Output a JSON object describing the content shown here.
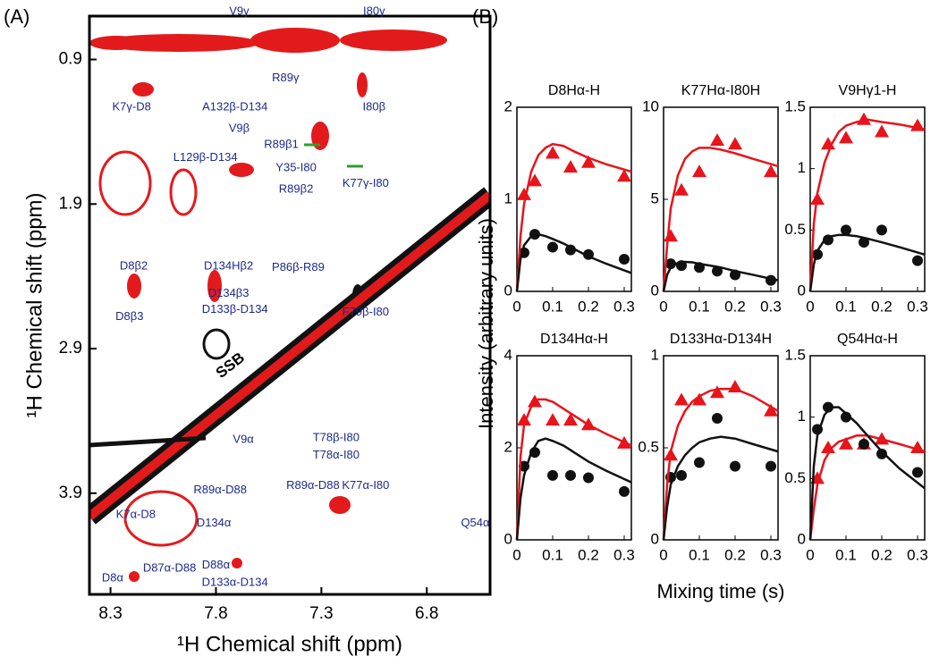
{
  "panel_labels": [
    "(A)",
    "(B)"
  ],
  "x_label": "Mixing time (s)",
  "y_label": "Intensity (arbitrary units)",
  "chart_data": [
    {
      "type": "spectrum",
      "x_label": "¹H Chemical shift (ppm)",
      "y_label": "¹H Chemical shift (ppm)",
      "xlim": [
        8.4,
        6.5
      ],
      "ylim": [
        0.6,
        4.6
      ],
      "y_reversed": true,
      "xticks": [
        8.3,
        7.8,
        7.3,
        6.8
      ],
      "yticks": [
        0.9,
        1.9,
        2.9,
        3.9
      ],
      "annotations": [
        {
          "text": "V9γ",
          "x": 7.69,
          "y": 0.57
        },
        {
          "text": "I80γ",
          "x": 7.05,
          "y": 0.57
        },
        {
          "text": "R89γ",
          "x": 7.47,
          "y": 1.03
        },
        {
          "text": "K7γ-D8",
          "x": 8.2,
          "y": 1.23
        },
        {
          "text": "A132β-D134",
          "x": 7.71,
          "y": 1.23
        },
        {
          "text": "I80β",
          "x": 7.05,
          "y": 1.23
        },
        {
          "text": "V9β",
          "x": 7.69,
          "y": 1.38
        },
        {
          "text": "R89β1",
          "x": 7.49,
          "y": 1.49
        },
        {
          "text": "L129β-D134",
          "x": 7.85,
          "y": 1.58
        },
        {
          "text": "Y35-I80",
          "x": 7.42,
          "y": 1.65
        },
        {
          "text": "K77γ-I80",
          "x": 7.09,
          "y": 1.76
        },
        {
          "text": "R89β2",
          "x": 7.42,
          "y": 1.8
        },
        {
          "text": "D8β2",
          "x": 8.19,
          "y": 2.33
        },
        {
          "text": "D134Hβ2",
          "x": 7.74,
          "y": 2.33
        },
        {
          "text": "P86β-R89",
          "x": 7.41,
          "y": 2.34
        },
        {
          "text": "D134β3",
          "x": 7.74,
          "y": 2.52
        },
        {
          "text": "D8β3",
          "x": 8.21,
          "y": 2.68
        },
        {
          "text": "D133β-D134",
          "x": 7.71,
          "y": 2.63
        },
        {
          "text": "F79β-I80",
          "x": 7.09,
          "y": 2.65
        },
        {
          "text": "SSB",
          "x": 7.73,
          "y": 3.02
        },
        {
          "text": "T78β-I80",
          "x": 7.23,
          "y": 3.52
        },
        {
          "text": "V9α",
          "x": 7.67,
          "y": 3.53
        },
        {
          "text": "T78α-I80",
          "x": 7.23,
          "y": 3.64
        },
        {
          "text": "R89α-D88",
          "x": 7.78,
          "y": 3.88
        },
        {
          "text": "R89α-D88",
          "x": 7.34,
          "y": 3.85
        },
        {
          "text": "K77α-I80",
          "x": 7.09,
          "y": 3.85
        },
        {
          "text": "K7α-D8",
          "x": 8.18,
          "y": 4.05
        },
        {
          "text": "D134α",
          "x": 7.81,
          "y": 4.11
        },
        {
          "text": "Q54α",
          "x": 6.57,
          "y": 4.11
        },
        {
          "text": "D88α",
          "x": 7.8,
          "y": 4.4
        },
        {
          "text": "D87α-D88",
          "x": 8.02,
          "y": 4.42
        },
        {
          "text": "D8α",
          "x": 8.29,
          "y": 4.49
        },
        {
          "text": "D133α-D134",
          "x": 7.71,
          "y": 4.52
        }
      ]
    },
    {
      "type": "scatter",
      "title": "D8Hα-H",
      "xlim": [
        0,
        0.32
      ],
      "xticks": [
        0,
        0.1,
        0.2,
        0.3
      ],
      "ylim": [
        0,
        2
      ],
      "yticks": [
        0,
        1,
        2
      ],
      "series": [
        {
          "marker": "triangle",
          "color": "#e8141b",
          "x": [
            0.02,
            0.05,
            0.1,
            0.15,
            0.2,
            0.3
          ],
          "values": [
            1.05,
            1.2,
            1.5,
            1.35,
            1.4,
            1.25
          ]
        },
        {
          "marker": "circle",
          "color": "#111111",
          "x": [
            0.02,
            0.05,
            0.1,
            0.15,
            0.2,
            0.3
          ],
          "values": [
            0.42,
            0.62,
            0.48,
            0.45,
            0.4,
            0.35
          ]
        },
        {
          "marker": "line",
          "color": "#e8141b",
          "x": [
            0,
            0.01,
            0.02,
            0.04,
            0.06,
            0.08,
            0.1,
            0.13,
            0.16,
            0.2,
            0.25,
            0.32
          ],
          "values": [
            0,
            0.6,
            0.95,
            1.3,
            1.48,
            1.56,
            1.6,
            1.58,
            1.52,
            1.45,
            1.38,
            1.3
          ]
        },
        {
          "marker": "line",
          "color": "#111111",
          "x": [
            0,
            0.01,
            0.02,
            0.04,
            0.06,
            0.08,
            0.1,
            0.13,
            0.16,
            0.2,
            0.25,
            0.32
          ],
          "values": [
            0,
            0.35,
            0.5,
            0.6,
            0.62,
            0.6,
            0.57,
            0.52,
            0.46,
            0.38,
            0.3,
            0.2
          ]
        }
      ]
    },
    {
      "type": "scatter",
      "title": "K77Hα-I80H",
      "xlim": [
        0,
        0.32
      ],
      "xticks": [
        0,
        0.1,
        0.2,
        0.3
      ],
      "ylim": [
        0,
        10
      ],
      "yticks": [
        0,
        5,
        10
      ],
      "series": [
        {
          "marker": "triangle",
          "color": "#e8141b",
          "x": [
            0.02,
            0.05,
            0.1,
            0.15,
            0.2,
            0.3
          ],
          "values": [
            3,
            5.5,
            6.5,
            8.2,
            8,
            6.5
          ]
        },
        {
          "marker": "circle",
          "color": "#111111",
          "x": [
            0.02,
            0.05,
            0.1,
            0.15,
            0.2,
            0.3
          ],
          "values": [
            1.5,
            1.4,
            1.3,
            1.1,
            0.9,
            0.6
          ]
        },
        {
          "marker": "line",
          "color": "#e8141b",
          "x": [
            0,
            0.01,
            0.02,
            0.04,
            0.06,
            0.08,
            0.1,
            0.13,
            0.16,
            0.2,
            0.25,
            0.32
          ],
          "values": [
            0,
            2.5,
            4.5,
            6.3,
            7.2,
            7.6,
            7.8,
            7.8,
            7.7,
            7.5,
            7.2,
            6.8
          ]
        },
        {
          "marker": "line",
          "color": "#111111",
          "x": [
            0,
            0.01,
            0.02,
            0.04,
            0.06,
            0.08,
            0.1,
            0.13,
            0.16,
            0.2,
            0.25,
            0.32
          ],
          "values": [
            0,
            0.9,
            1.3,
            1.55,
            1.6,
            1.58,
            1.5,
            1.4,
            1.3,
            1.1,
            0.9,
            0.6
          ]
        }
      ]
    },
    {
      "type": "scatter",
      "title": "V9Hγ1-H",
      "xlim": [
        0,
        0.32
      ],
      "xticks": [
        0,
        0.1,
        0.2,
        0.3
      ],
      "ylim": [
        0,
        1.5
      ],
      "yticks": [
        0,
        0.5,
        1,
        1.5
      ],
      "series": [
        {
          "marker": "triangle",
          "color": "#e8141b",
          "x": [
            0.02,
            0.05,
            0.1,
            0.15,
            0.2,
            0.3
          ],
          "values": [
            0.75,
            1.2,
            1.25,
            1.4,
            1.3,
            1.35
          ]
        },
        {
          "marker": "circle",
          "color": "#111111",
          "x": [
            0.02,
            0.05,
            0.1,
            0.15,
            0.2,
            0.3
          ],
          "values": [
            0.3,
            0.42,
            0.5,
            0.4,
            0.5,
            0.25
          ]
        },
        {
          "marker": "line",
          "color": "#e8141b",
          "x": [
            0,
            0.01,
            0.02,
            0.04,
            0.06,
            0.08,
            0.1,
            0.13,
            0.16,
            0.2,
            0.25,
            0.32
          ],
          "values": [
            0,
            0.55,
            0.8,
            1.05,
            1.2,
            1.3,
            1.35,
            1.38,
            1.4,
            1.38,
            1.36,
            1.32
          ]
        },
        {
          "marker": "line",
          "color": "#111111",
          "x": [
            0,
            0.01,
            0.02,
            0.04,
            0.06,
            0.08,
            0.1,
            0.13,
            0.16,
            0.2,
            0.25,
            0.32
          ],
          "values": [
            0,
            0.22,
            0.33,
            0.42,
            0.45,
            0.46,
            0.46,
            0.45,
            0.43,
            0.4,
            0.36,
            0.3
          ]
        }
      ]
    },
    {
      "type": "scatter",
      "title": "D134Hα-H",
      "xlim": [
        0,
        0.32
      ],
      "xticks": [
        0,
        0.1,
        0.2,
        0.3
      ],
      "ylim": [
        0,
        4
      ],
      "yticks": [
        0,
        2,
        4
      ],
      "series": [
        {
          "marker": "triangle",
          "color": "#e8141b",
          "x": [
            0.02,
            0.05,
            0.1,
            0.15,
            0.2,
            0.3
          ],
          "values": [
            2.6,
            3,
            2.6,
            2.6,
            2.5,
            2.1
          ]
        },
        {
          "marker": "circle",
          "color": "#111111",
          "x": [
            0.02,
            0.05,
            0.1,
            0.15,
            0.2,
            0.3
          ],
          "values": [
            1.6,
            1.9,
            1.4,
            1.4,
            1.35,
            1.05
          ]
        },
        {
          "marker": "line",
          "color": "#e8141b",
          "x": [
            0,
            0.01,
            0.02,
            0.04,
            0.06,
            0.08,
            0.1,
            0.13,
            0.16,
            0.2,
            0.25,
            0.32
          ],
          "values": [
            0,
            1.8,
            2.5,
            2.9,
            3.05,
            3.05,
            3,
            2.85,
            2.7,
            2.5,
            2.3,
            2.05
          ]
        },
        {
          "marker": "line",
          "color": "#111111",
          "x": [
            0,
            0.01,
            0.02,
            0.04,
            0.06,
            0.08,
            0.1,
            0.13,
            0.16,
            0.2,
            0.25,
            0.32
          ],
          "values": [
            0,
            0.9,
            1.4,
            1.9,
            2.15,
            2.2,
            2.15,
            2.05,
            1.9,
            1.7,
            1.5,
            1.25
          ]
        }
      ]
    },
    {
      "type": "scatter",
      "title": "D133Hα-D134H",
      "xlim": [
        0,
        0.32
      ],
      "xticks": [
        0,
        0.1,
        0.2,
        0.3
      ],
      "ylim": [
        0,
        1
      ],
      "yticks": [
        0,
        0.5,
        1
      ],
      "series": [
        {
          "marker": "triangle",
          "color": "#e8141b",
          "x": [
            0.02,
            0.05,
            0.1,
            0.15,
            0.2,
            0.3
          ],
          "values": [
            0.46,
            0.76,
            0.76,
            0.8,
            0.83,
            0.7
          ]
        },
        {
          "marker": "circle",
          "color": "#111111",
          "x": [
            0.02,
            0.05,
            0.1,
            0.15,
            0.2,
            0.3
          ],
          "values": [
            0.34,
            0.35,
            0.42,
            0.66,
            0.4,
            0.4
          ]
        },
        {
          "marker": "line",
          "color": "#e8141b",
          "x": [
            0,
            0.01,
            0.02,
            0.04,
            0.06,
            0.08,
            0.1,
            0.13,
            0.16,
            0.2,
            0.25,
            0.32
          ],
          "values": [
            0,
            0.3,
            0.48,
            0.62,
            0.7,
            0.75,
            0.78,
            0.81,
            0.82,
            0.82,
            0.78,
            0.7
          ]
        },
        {
          "marker": "line",
          "color": "#111111",
          "x": [
            0,
            0.01,
            0.02,
            0.04,
            0.06,
            0.08,
            0.1,
            0.13,
            0.16,
            0.2,
            0.25,
            0.32
          ],
          "values": [
            0,
            0.18,
            0.3,
            0.4,
            0.46,
            0.5,
            0.53,
            0.55,
            0.56,
            0.55,
            0.52,
            0.48
          ]
        }
      ]
    },
    {
      "type": "scatter",
      "title": "Q54Hα-H",
      "xlim": [
        0,
        0.32
      ],
      "xticks": [
        0,
        0.1,
        0.2,
        0.3
      ],
      "ylim": [
        0,
        1.5
      ],
      "yticks": [
        0,
        0.5,
        1,
        1.5
      ],
      "series": [
        {
          "marker": "triangle",
          "color": "#e8141b",
          "x": [
            0.02,
            0.05,
            0.1,
            0.15,
            0.2,
            0.3
          ],
          "values": [
            0.5,
            0.75,
            0.78,
            0.78,
            0.82,
            0.75
          ]
        },
        {
          "marker": "circle",
          "color": "#111111",
          "x": [
            0.02,
            0.05,
            0.1,
            0.15,
            0.2,
            0.3
          ],
          "values": [
            0.9,
            1.08,
            1,
            0.78,
            0.7,
            0.55
          ]
        },
        {
          "marker": "line",
          "color": "#e8141b",
          "x": [
            0,
            0.01,
            0.02,
            0.04,
            0.06,
            0.08,
            0.1,
            0.13,
            0.16,
            0.2,
            0.25,
            0.32
          ],
          "values": [
            0,
            0.25,
            0.45,
            0.65,
            0.75,
            0.8,
            0.82,
            0.85,
            0.85,
            0.82,
            0.78,
            0.72
          ]
        },
        {
          "marker": "line",
          "color": "#111111",
          "x": [
            0,
            0.01,
            0.02,
            0.04,
            0.06,
            0.08,
            0.1,
            0.13,
            0.16,
            0.2,
            0.25,
            0.32
          ],
          "values": [
            0,
            0.6,
            0.85,
            1.02,
            1.08,
            1.08,
            1.03,
            0.95,
            0.85,
            0.72,
            0.58,
            0.42
          ]
        }
      ]
    }
  ]
}
